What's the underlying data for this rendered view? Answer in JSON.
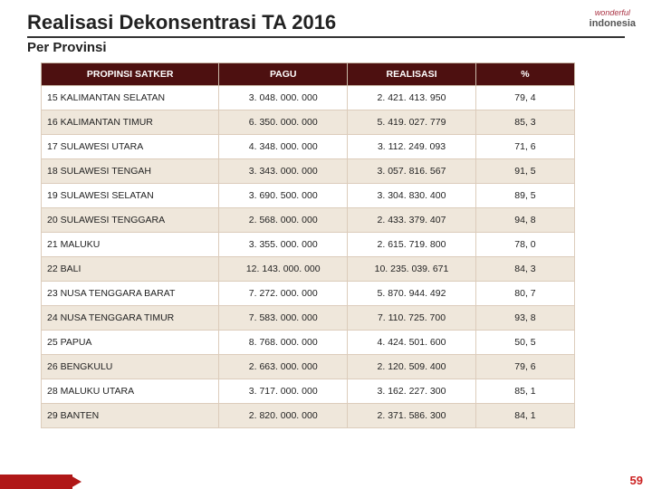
{
  "title": "Realisasi Dekonsentrasi TA 2016",
  "subtitle": "Per Provinsi",
  "page_number": "59",
  "logo": {
    "line1": "wonderful",
    "line2": "indonesia"
  },
  "table": {
    "columns": [
      "PROPINSI SATKER",
      "PAGU",
      "REALISASI",
      "%"
    ],
    "header_bg": "#4d1010",
    "header_fg": "#ffffff",
    "row_alt_bg": "#efe7db",
    "border_color": "#dcccbb",
    "rows": [
      {
        "name": "15 KALIMANTAN SELATAN",
        "pagu": "3. 048. 000. 000",
        "realisasi": "2. 421. 413. 950",
        "pct": "79, 4"
      },
      {
        "name": "16 KALIMANTAN TIMUR",
        "pagu": "6. 350. 000. 000",
        "realisasi": "5. 419. 027. 779",
        "pct": "85, 3"
      },
      {
        "name": "17 SULAWESI UTARA",
        "pagu": "4. 348. 000. 000",
        "realisasi": "3. 112. 249. 093",
        "pct": "71, 6"
      },
      {
        "name": "18 SULAWESI TENGAH",
        "pagu": "3. 343. 000. 000",
        "realisasi": "3. 057. 816. 567",
        "pct": "91, 5"
      },
      {
        "name": "19 SULAWESI SELATAN",
        "pagu": "3. 690. 500. 000",
        "realisasi": "3. 304. 830. 400",
        "pct": "89, 5"
      },
      {
        "name": "20 SULAWESI TENGGARA",
        "pagu": "2. 568. 000. 000",
        "realisasi": "2. 433. 379. 407",
        "pct": "94, 8"
      },
      {
        "name": "21 MALUKU",
        "pagu": "3. 355. 000. 000",
        "realisasi": "2. 615. 719. 800",
        "pct": "78, 0"
      },
      {
        "name": "22 BALI",
        "pagu": "12. 143. 000. 000",
        "realisasi": "10. 235. 039. 671",
        "pct": "84, 3"
      },
      {
        "name": "23 NUSA TENGGARA BARAT",
        "pagu": "7. 272. 000. 000",
        "realisasi": "5. 870. 944. 492",
        "pct": "80, 7"
      },
      {
        "name": "24 NUSA TENGGARA TIMUR",
        "pagu": "7. 583. 000. 000",
        "realisasi": "7. 110. 725. 700",
        "pct": "93, 8"
      },
      {
        "name": "25 PAPUA",
        "pagu": "8. 768. 000. 000",
        "realisasi": "4. 424. 501. 600",
        "pct": "50, 5"
      },
      {
        "name": "26 BENGKULU",
        "pagu": "2. 663. 000. 000",
        "realisasi": "2. 120. 509. 400",
        "pct": "79, 6"
      },
      {
        "name": "28 MALUKU UTARA",
        "pagu": "3. 717. 000. 000",
        "realisasi": "3. 162. 227. 300",
        "pct": "85, 1"
      },
      {
        "name": "29 BANTEN",
        "pagu": "2. 820. 000. 000",
        "realisasi": "2. 371. 586. 300",
        "pct": "84, 1"
      }
    ]
  }
}
